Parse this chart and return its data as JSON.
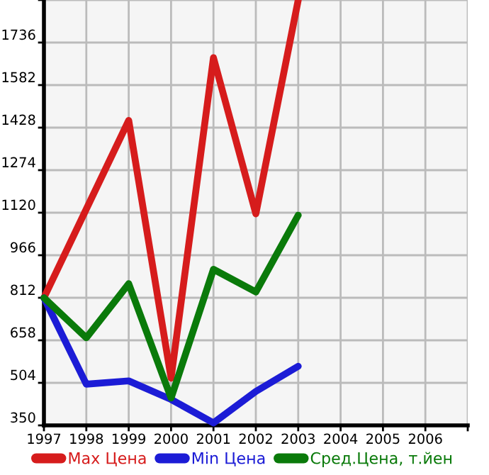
{
  "chart_data": {
    "type": "line",
    "x": [
      1997,
      1998,
      1999,
      2000,
      2001,
      2002,
      2003
    ],
    "series": [
      {
        "name": "Max Цена",
        "color": "#d61c1c",
        "values": [
          812,
          1133,
          1454,
          521,
          1681,
          1116,
          1890
        ]
      },
      {
        "name": "Min Цена",
        "color": "#1c1cd6",
        "values": [
          812,
          499,
          511,
          444,
          359,
          473,
          564
        ]
      },
      {
        "name": "Сред.Цена, т.йен",
        "color": "#0a7a0a",
        "values": [
          812,
          667,
          863,
          449,
          915,
          833,
          1111
        ]
      }
    ],
    "xlim": [
      1997,
      2007
    ],
    "xticks": [
      1997,
      1998,
      1999,
      2000,
      2001,
      2002,
      2003,
      2004,
      2005,
      2006,
      {
        "value": 2007,
        "label": null
      }
    ],
    "ylim": [
      350,
      1890
    ],
    "yticks": [
      350,
      504,
      658,
      812,
      966,
      1120,
      1274,
      1428,
      1582,
      1736,
      {
        "value": 1890,
        "label": null
      }
    ],
    "grid": true,
    "legend": "bottom",
    "marker": "none",
    "line_style": "solid"
  }
}
